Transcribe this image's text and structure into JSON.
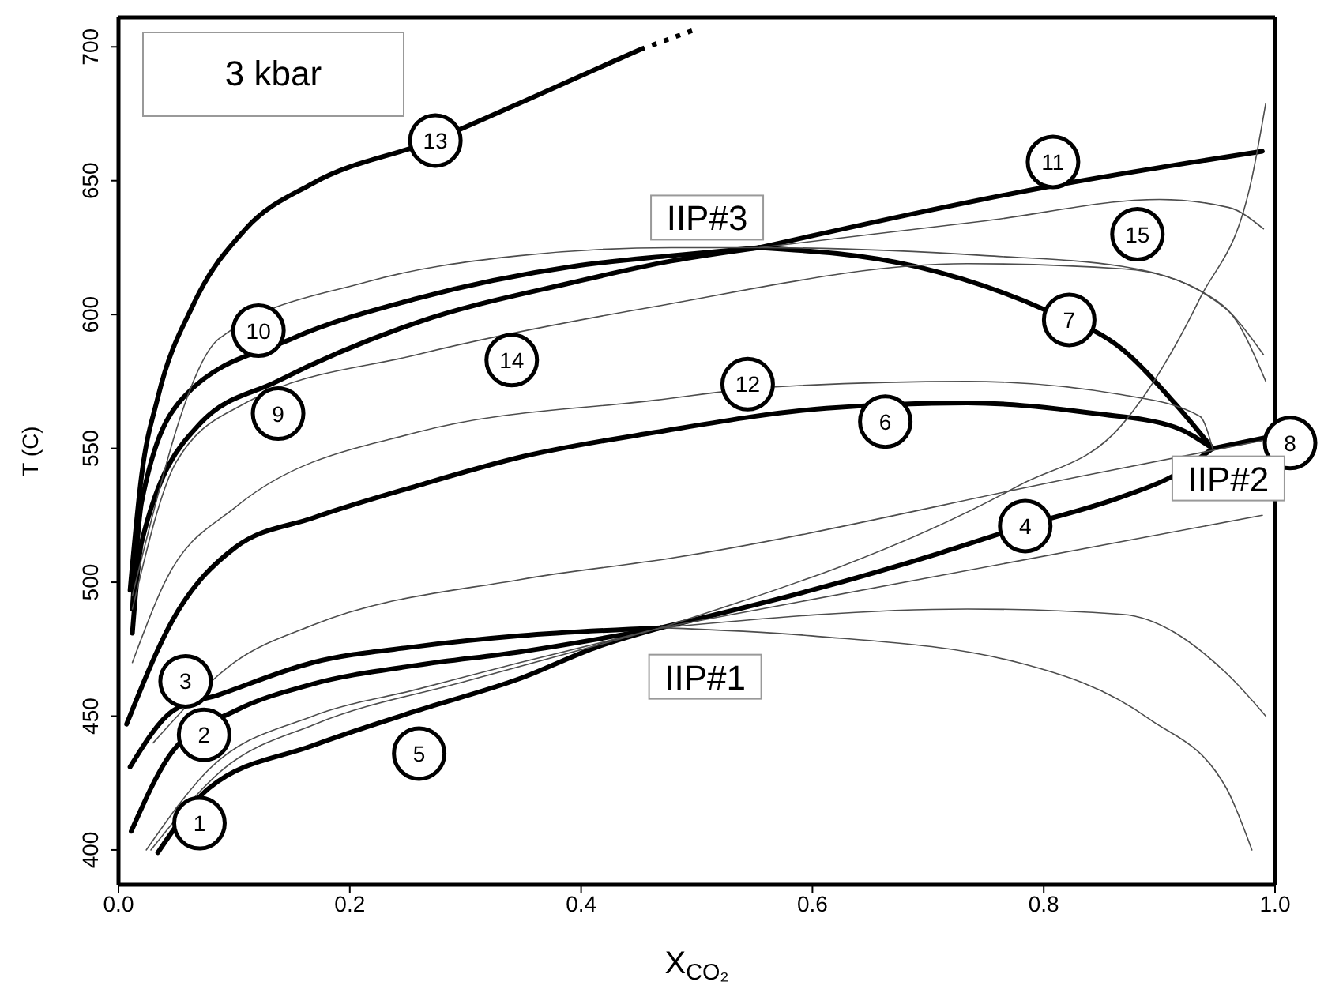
{
  "chart_data": {
    "type": "line",
    "xlabel": "X$_{CO₂}$",
    "ylabel": "T (C)",
    "xlim": [
      0,
      1
    ],
    "ylim": [
      387,
      711
    ],
    "xticks": [
      {
        "value": 0,
        "label": "0.0"
      },
      {
        "value": 0.2,
        "label": "0.2"
      },
      {
        "value": 0.4,
        "label": "0.4"
      },
      {
        "value": 0.6,
        "label": "0.6"
      },
      {
        "value": 0.8,
        "label": "0.8"
      },
      {
        "value": 1,
        "label": "1.0"
      }
    ],
    "yticks": [
      400,
      450,
      500,
      550,
      600,
      650,
      700
    ],
    "grid": false,
    "marker": "none",
    "line_style": "solid",
    "series": [
      {
        "color": "#000000",
        "x": [
          0.01,
          0.02,
          0.034,
          0.065,
          0.11,
          0.168,
          0.272,
          0.347,
          0.451
        ],
        "values": [
          497,
          540,
          569,
          604,
          632,
          649,
          665,
          679,
          699
        ]
      },
      {
        "color": "#000000",
        "line_style": "dotted",
        "x": [
          0.451,
          0.502
        ],
        "values": [
          699,
          707
        ]
      },
      {
        "color": "#000000",
        "x": [
          0.012,
          0.02,
          0.056,
          0.15,
          0.258,
          0.393,
          0.478,
          0.554
        ],
        "values": [
          490,
          530,
          569,
          591,
          606,
          618,
          622,
          625
        ]
      },
      {
        "color": "#000000",
        "x": [
          0.012,
          0.02,
          0.07,
          0.137,
          0.258,
          0.393,
          0.478,
          0.554
        ],
        "values": [
          481,
          515,
          559,
          575,
          597,
          612,
          620,
          625
        ]
      },
      {
        "color": "#000000",
        "x": [
          0.554,
          0.807,
          0.989
        ],
        "values": [
          625,
          648,
          661
        ]
      },
      {
        "color": "#000000",
        "x": [
          0.554,
          0.689,
          0.8,
          0.868,
          0.913,
          0.946
        ],
        "values": [
          625,
          618,
          602,
          587,
          567,
          550
        ]
      },
      {
        "color": "#000000",
        "x": [
          0.007,
          0.047,
          0.101,
          0.168,
          0.258,
          0.35,
          0.464,
          0.612,
          0.734,
          0.845,
          0.913,
          0.946
        ],
        "values": [
          447,
          486,
          513,
          524,
          536,
          547,
          556,
          565,
          567,
          563,
          558,
          550
        ]
      },
      {
        "color": "#000000",
        "x": [
          0.01,
          0.047,
          0.087,
          0.168,
          0.258,
          0.347,
          0.469
        ],
        "values": [
          431,
          452,
          458,
          470,
          476,
          480,
          483
        ]
      },
      {
        "color": "#000000",
        "x": [
          0.011,
          0.047,
          0.101,
          0.168,
          0.258,
          0.347,
          0.469
        ],
        "values": [
          407,
          437,
          452,
          462,
          469,
          474,
          483
        ]
      },
      {
        "color": "#000000",
        "x": [
          0.034,
          0.078,
          0.168,
          0.258,
          0.347,
          0.415,
          0.469
        ],
        "values": [
          399,
          423,
          439,
          452,
          464,
          476,
          483
        ]
      },
      {
        "color": "#000000",
        "x": [
          0.469,
          0.599,
          0.711,
          0.783,
          0.868,
          0.913,
          0.946
        ],
        "values": [
          483,
          497,
          511,
          521,
          532,
          540,
          550
        ]
      },
      {
        "color": "#000000",
        "x": [
          0.946,
          0.992
        ],
        "values": [
          550,
          554
        ]
      },
      {
        "color": "#4d4d4d",
        "x": [
          0.012,
          0.04,
          0.101,
          0.258,
          0.464,
          0.568,
          0.734,
          0.868,
          0.935,
          0.946
        ],
        "values": [
          470,
          500,
          528,
          556,
          568,
          573,
          575,
          570,
          562,
          550
        ]
      },
      {
        "color": "#4d4d4d",
        "x": [
          0.012,
          0.05,
          0.11,
          0.258,
          0.464,
          0.734,
          0.87,
          0.95,
          0.99
        ],
        "values": [
          490,
          545,
          567,
          585,
          603,
          619,
          617,
          605,
          585
        ]
      },
      {
        "color": "#4d4d4d",
        "x": [
          0.554,
          0.75,
          0.9,
          0.96,
          0.99
        ],
        "values": [
          625,
          635,
          643,
          640,
          632
        ]
      },
      {
        "color": "#4d4d4d",
        "x": [
          0.012,
          0.087,
          0.213,
          0.347,
          0.478,
          0.554,
          0.75,
          0.868,
          0.958,
          0.992
        ],
        "values": [
          495,
          591,
          612,
          622,
          625,
          625,
          622,
          618,
          602,
          575
        ]
      },
      {
        "color": "#4d4d4d",
        "x": [
          0.469,
          0.778,
          0.868,
          0.935,
          0.98,
          0.992
        ],
        "values": [
          483,
          536,
          559,
          606,
          651,
          679
        ]
      },
      {
        "color": "#4d4d4d",
        "x": [
          0.03,
          0.1,
          0.168,
          0.347,
          0.478,
          0.837,
          0.99
        ],
        "values": [
          440,
          470,
          484,
          501,
          509,
          540,
          553
        ]
      },
      {
        "color": "#4d4d4d",
        "x": [
          0.469,
          0.989
        ],
        "values": [
          483,
          525
        ]
      },
      {
        "color": "#4d4d4d",
        "x": [
          0.469,
          0.734,
          0.868,
          0.958,
          0.992
        ],
        "values": [
          483,
          490,
          488,
          466,
          450
        ]
      },
      {
        "color": "#4d4d4d",
        "x": [
          0.469,
          0.599,
          0.778,
          0.891,
          0.958,
          0.98
        ],
        "values": [
          483,
          480,
          470,
          449,
          423,
          400
        ]
      },
      {
        "color": "#4d4d4d",
        "x": [
          0.024,
          0.078,
          0.168,
          0.258,
          0.347,
          0.469
        ],
        "values": [
          400,
          430,
          450,
          460,
          470,
          483
        ]
      },
      {
        "color": "#4d4d4d",
        "x": [
          0.028,
          0.09,
          0.17,
          0.3,
          0.469
        ],
        "values": [
          400,
          430,
          447,
          463,
          483
        ]
      }
    ],
    "annotations": [
      "3 kbar",
      {
        "text": "1",
        "x": 0.07,
        "y": 410
      },
      {
        "text": "2",
        "x": 0.074,
        "y": 443
      },
      {
        "text": "3",
        "x": 0.058,
        "y": 463
      },
      {
        "text": "4",
        "x": 0.784,
        "y": 521
      },
      {
        "text": "5",
        "x": 0.26,
        "y": 436
      },
      {
        "text": "6",
        "x": 0.663,
        "y": 560
      },
      {
        "text": "7",
        "x": 0.822,
        "y": 598
      },
      {
        "text": "8",
        "x": 1.013,
        "y": 552
      },
      {
        "text": "9",
        "x": 0.138,
        "y": 563
      },
      {
        "text": "10",
        "x": 0.121,
        "y": 594
      },
      {
        "text": "11",
        "x": 0.808,
        "y": 657
      },
      {
        "text": "12",
        "x": 0.544,
        "y": 574
      },
      {
        "text": "13",
        "x": 0.274,
        "y": 665
      },
      {
        "text": "14",
        "x": 0.34,
        "y": 583
      },
      {
        "text": "15",
        "x": 0.881,
        "y": 630
      },
      {
        "text": "IIP#1",
        "x": 0.469,
        "y": 483
      },
      {
        "text": "IIP#2",
        "x": 0.946,
        "y": 550
      },
      {
        "text": "IIP#3",
        "x": 0.554,
        "y": 625
      }
    ]
  }
}
